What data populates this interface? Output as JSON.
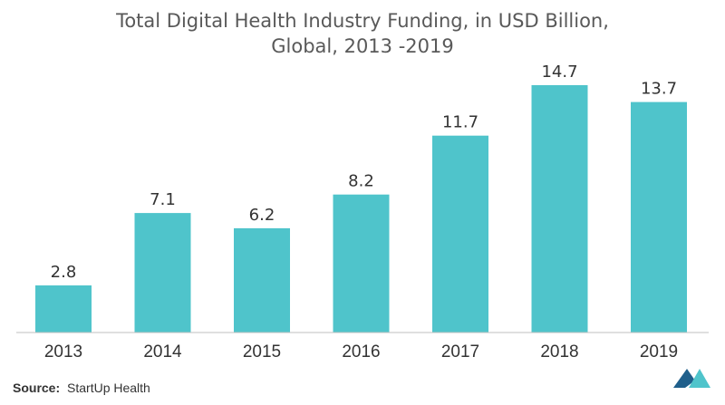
{
  "chart_data": {
    "type": "bar",
    "title_line1": "Total Digital Health Industry Funding, in USD Billion,",
    "title_line2": "Global, 2013 -2019",
    "categories": [
      "2013",
      "2014",
      "2015",
      "2016",
      "2017",
      "2018",
      "2019"
    ],
    "values": [
      2.8,
      7.1,
      6.2,
      8.2,
      11.7,
      14.7,
      13.7
    ],
    "data_labels": [
      "2.8",
      "7.1",
      "6.2",
      "8.2",
      "11.7",
      "14.7",
      "13.7"
    ],
    "xlabel": "",
    "ylabel": "",
    "ylim": [
      0,
      16
    ],
    "grid": false,
    "legend": "none",
    "bar_color": "#4FC4CB",
    "axis_color": "#BFBFBF"
  },
  "source": {
    "label": "Source:",
    "text": "StartUp Health"
  },
  "logo": {
    "name": "brand-logo-icon",
    "colors": [
      "#1F5F8B",
      "#4FC4CB"
    ]
  }
}
